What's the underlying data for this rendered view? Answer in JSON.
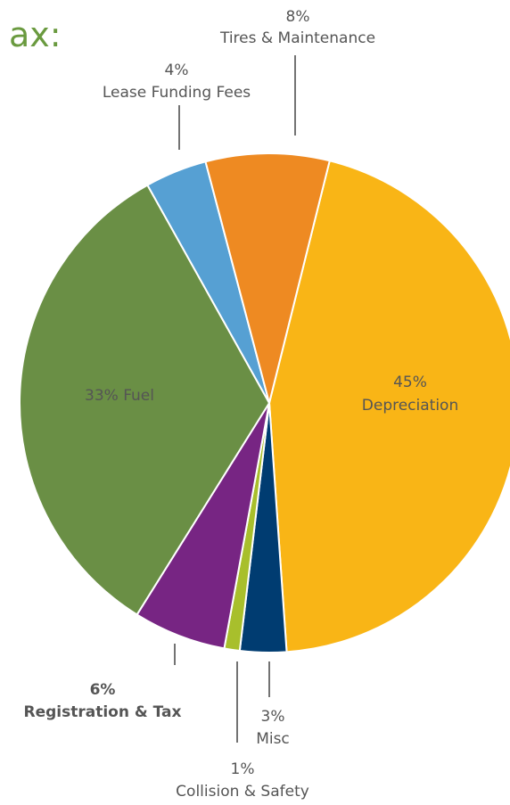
{
  "title_fragment": "ax:",
  "chart_data": {
    "type": "pie",
    "slices": [
      {
        "label": "Depreciation",
        "percent_label": "45%",
        "value": 45,
        "color": "#F9B516"
      },
      {
        "label": "Misc",
        "percent_label": "3%",
        "value": 3,
        "color": "#003C71"
      },
      {
        "label": "Collision & Safety",
        "percent_label": "1%",
        "value": 1,
        "color": "#A8BF2C"
      },
      {
        "label": "Registration & Tax",
        "percent_label": "6%",
        "value": 6,
        "color": "#772583"
      },
      {
        "label": "Fuel",
        "percent_label": "33%",
        "value": 33,
        "color": "#6A8F45"
      },
      {
        "label": "Lease Funding Fees",
        "percent_label": "4%",
        "value": 4,
        "color": "#56A0D3"
      },
      {
        "label": "Tires & Maintenance",
        "percent_label": "8%",
        "value": 8,
        "color": "#EE8A22"
      }
    ],
    "inside_labels": {
      "fuel": "33% Fuel",
      "depreciation_pct": "45%",
      "depreciation_name": "Depreciation"
    }
  }
}
